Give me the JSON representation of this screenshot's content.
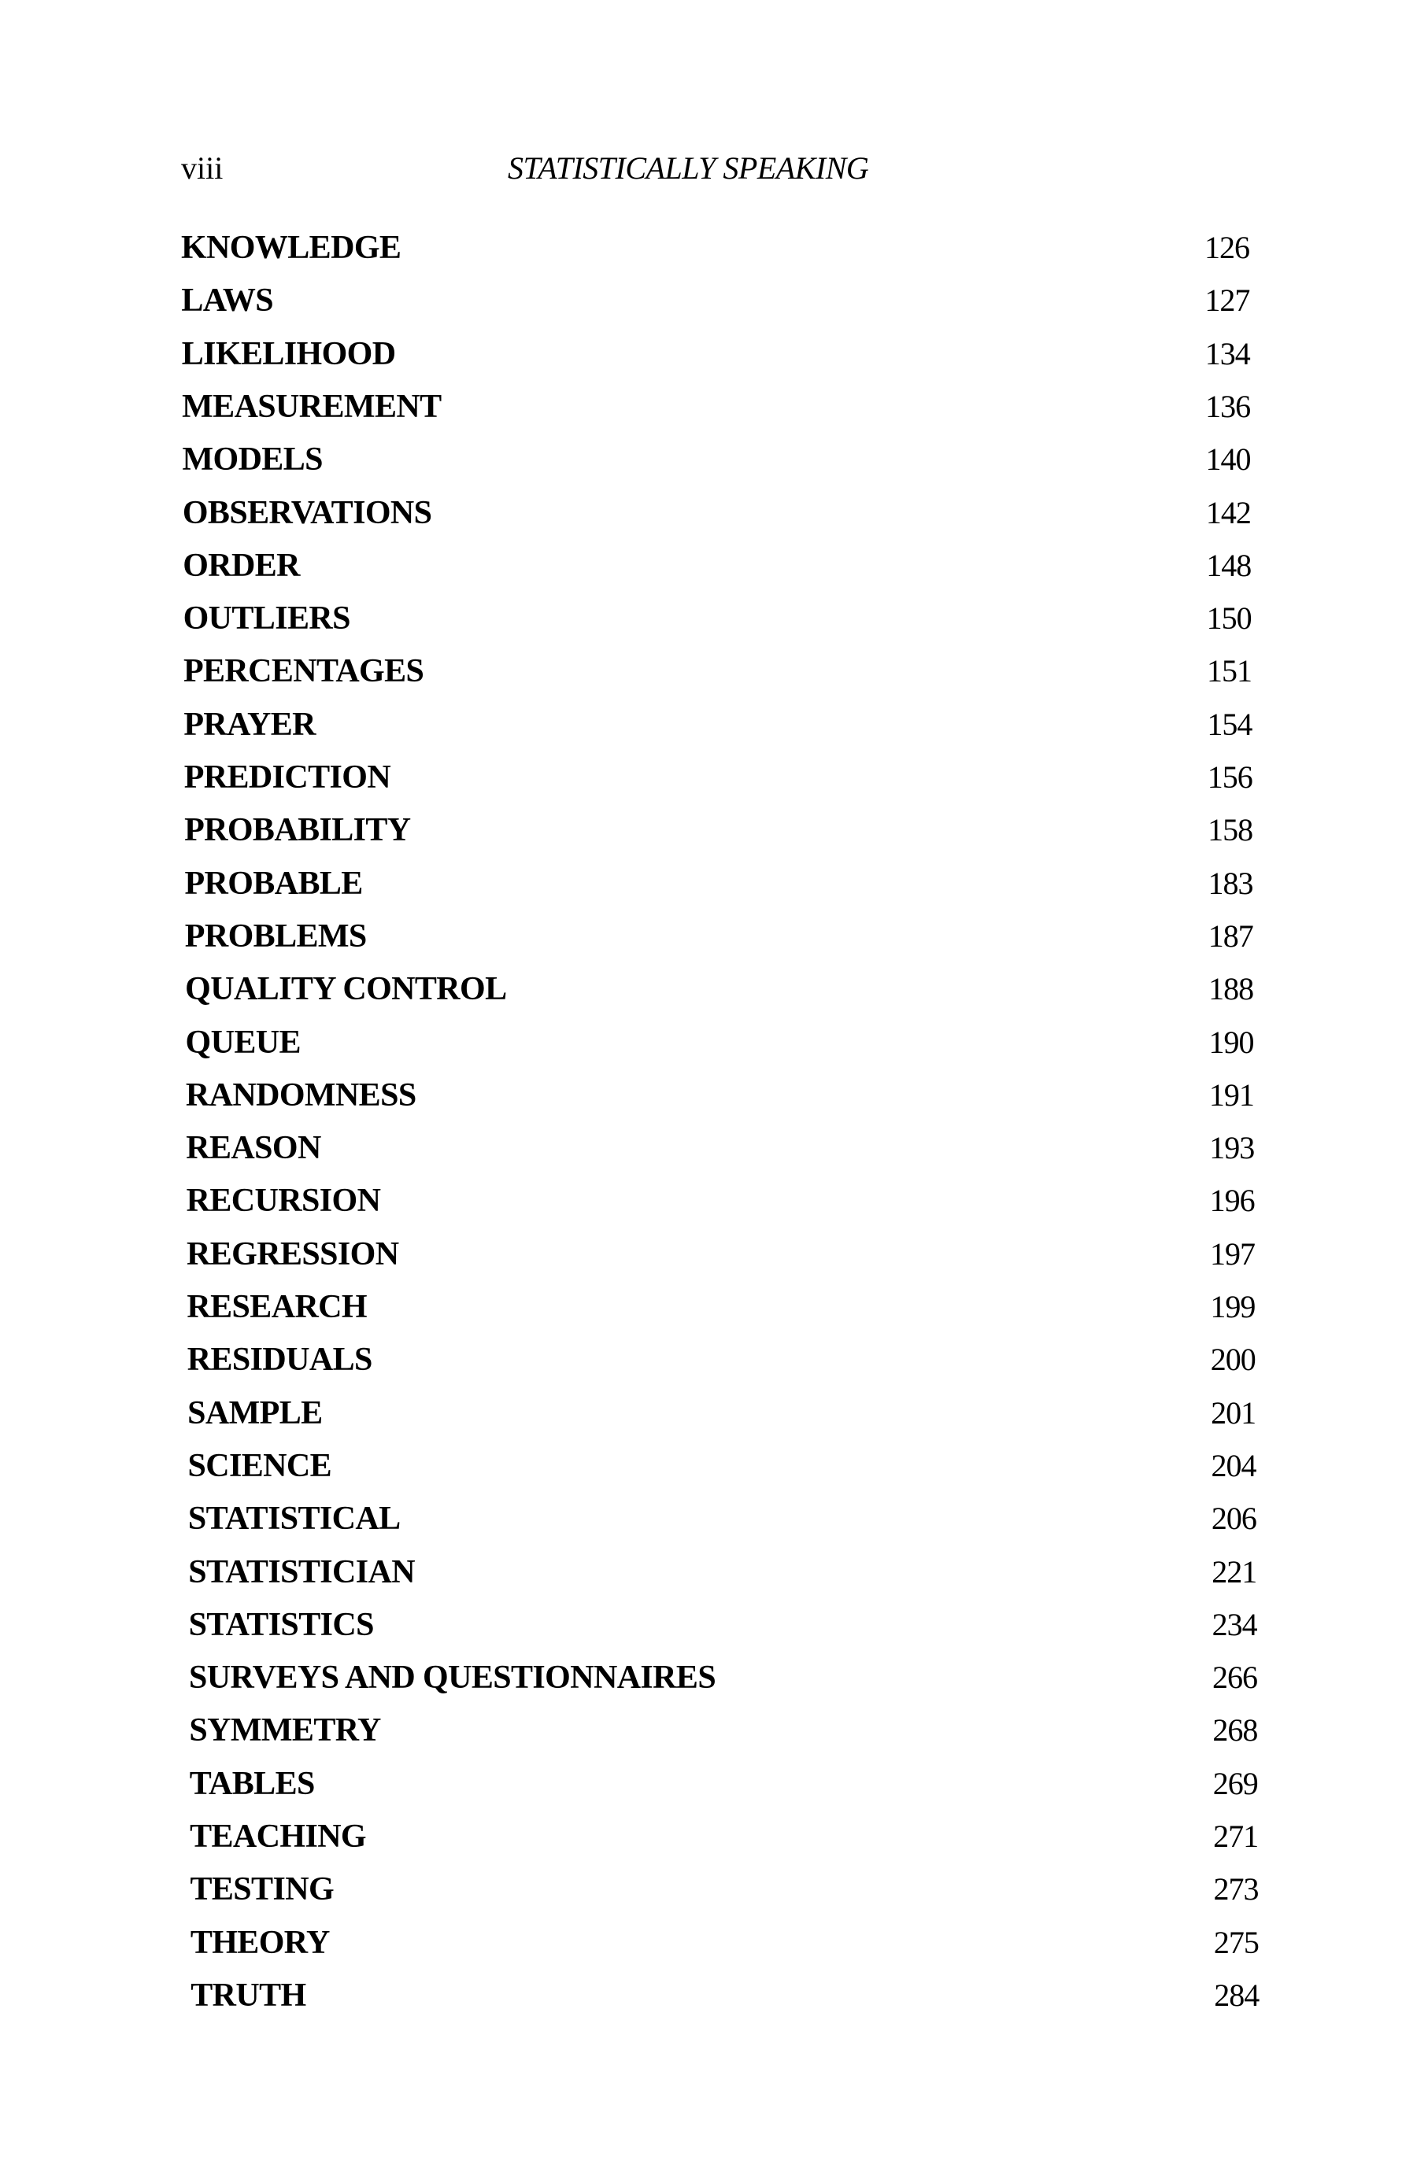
{
  "header": {
    "page_number": "viii",
    "running_title": "STATISTICALLY SPEAKING"
  },
  "contents": [
    {
      "title": "KNOWLEDGE",
      "page": "126"
    },
    {
      "title": "LAWS",
      "page": "127"
    },
    {
      "title": "LIKELIHOOD",
      "page": "134"
    },
    {
      "title": "MEASUREMENT",
      "page": "136"
    },
    {
      "title": "MODELS",
      "page": "140"
    },
    {
      "title": "OBSERVATIONS",
      "page": "142"
    },
    {
      "title": "ORDER",
      "page": "148"
    },
    {
      "title": "OUTLIERS",
      "page": "150"
    },
    {
      "title": "PERCENTAGES",
      "page": "151"
    },
    {
      "title": "PRAYER",
      "page": "154"
    },
    {
      "title": "PREDICTION",
      "page": "156"
    },
    {
      "title": "PROBABILITY",
      "page": "158"
    },
    {
      "title": "PROBABLE",
      "page": "183"
    },
    {
      "title": "PROBLEMS",
      "page": "187"
    },
    {
      "title": "QUALITY CONTROL",
      "page": "188"
    },
    {
      "title": "QUEUE",
      "page": "190"
    },
    {
      "title": "RANDOMNESS",
      "page": "191"
    },
    {
      "title": "REASON",
      "page": "193"
    },
    {
      "title": "RECURSION",
      "page": "196"
    },
    {
      "title": "REGRESSION",
      "page": "197"
    },
    {
      "title": "RESEARCH",
      "page": "199"
    },
    {
      "title": "RESIDUALS",
      "page": "200"
    },
    {
      "title": "SAMPLE",
      "page": "201"
    },
    {
      "title": "SCIENCE",
      "page": "204"
    },
    {
      "title": "STATISTICAL",
      "page": "206"
    },
    {
      "title": "STATISTICIAN",
      "page": "221"
    },
    {
      "title": "STATISTICS",
      "page": "234"
    },
    {
      "title": "SURVEYS AND QUESTIONNAIRES",
      "page": "266"
    },
    {
      "title": "SYMMETRY",
      "page": "268"
    },
    {
      "title": "TABLES",
      "page": "269"
    },
    {
      "title": "TEACHING",
      "page": "271"
    },
    {
      "title": "TESTING",
      "page": "273"
    },
    {
      "title": "THEORY",
      "page": "275"
    },
    {
      "title": "TRUTH",
      "page": "284"
    }
  ]
}
